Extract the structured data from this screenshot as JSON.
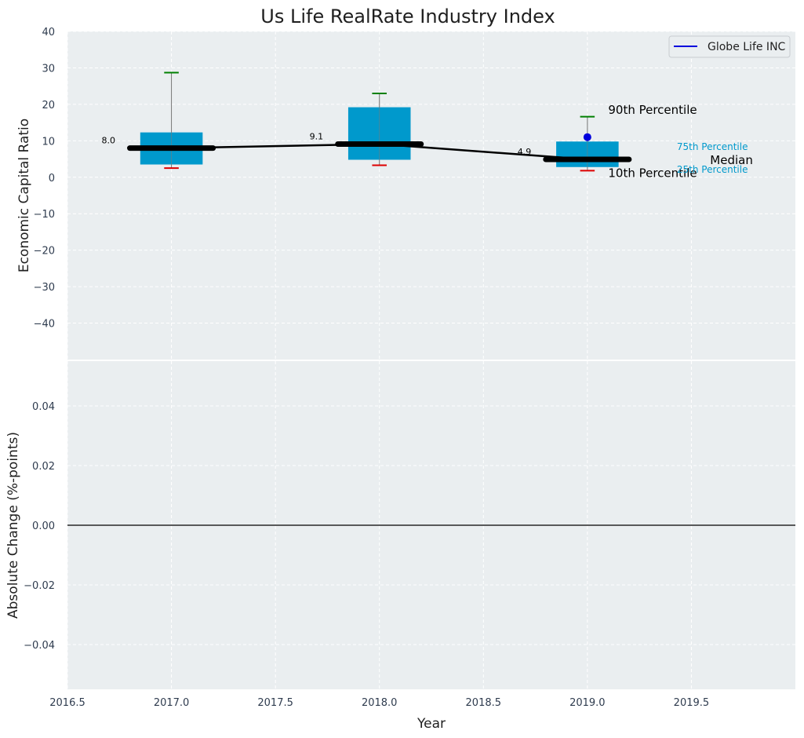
{
  "title": "Us Life RealRate Industry Index",
  "colors": {
    "panel_bg": "#eaeef0",
    "grid": "#ffffff",
    "box": "#0099cc",
    "whisker_high": "#008000",
    "whisker_low": "#dd0000",
    "median": "#000000",
    "company": "#0000dd",
    "zero_line": "#000000"
  },
  "chart_data": [
    {
      "type": "box",
      "ylabel": "Economic Capital Ratio",
      "xlim": [
        2016.5,
        2020.0
      ],
      "ylim": [
        -50,
        40
      ],
      "yticks": [
        -40,
        -30,
        -20,
        -10,
        0,
        10,
        20,
        30,
        40
      ],
      "grid": true,
      "legend": {
        "placement": "top-right",
        "entries": [
          "Globe Life INC"
        ]
      },
      "boxes": [
        {
          "year": 2017,
          "p10": 2.5,
          "p25": 3.5,
          "median": 8.0,
          "p75": 12.3,
          "p90": 28.7
        },
        {
          "year": 2018,
          "p10": 3.3,
          "p25": 4.8,
          "median": 9.1,
          "p75": 19.2,
          "p90": 23.0
        },
        {
          "year": 2019,
          "p10": 1.8,
          "p25": 2.8,
          "median": 4.9,
          "p75": 9.8,
          "p90": 16.6
        }
      ],
      "median_labels": [
        "8.0",
        "9.1",
        "4.9"
      ],
      "series": [
        {
          "name": "Globe Life INC",
          "x": [
            2019
          ],
          "y": [
            11.0
          ]
        }
      ],
      "annotations": {
        "p90": "90th Percentile",
        "p75": "75th Percentile",
        "median": "Median",
        "p25": "25th Percentile",
        "p10": "10th Percentile"
      }
    },
    {
      "type": "line",
      "xlabel": "Year",
      "ylabel": "Absolute Change (%-points)",
      "xlim": [
        2016.5,
        2020.0
      ],
      "ylim": [
        -0.055,
        0.055
      ],
      "yticks": [
        -0.04,
        -0.02,
        0.0,
        0.02,
        0.04
      ],
      "ytick_labels": [
        "−0.04",
        "−0.02",
        "0.00",
        "0.02",
        "0.04"
      ],
      "xticks": [
        2016.5,
        2017.0,
        2017.5,
        2018.0,
        2018.5,
        2019.0,
        2019.5
      ],
      "xtick_labels": [
        "2016.5",
        "2017.0",
        "2017.5",
        "2018.0",
        "2018.5",
        "2019.0",
        "2019.5"
      ],
      "grid": true,
      "zero_line": 0
    }
  ]
}
